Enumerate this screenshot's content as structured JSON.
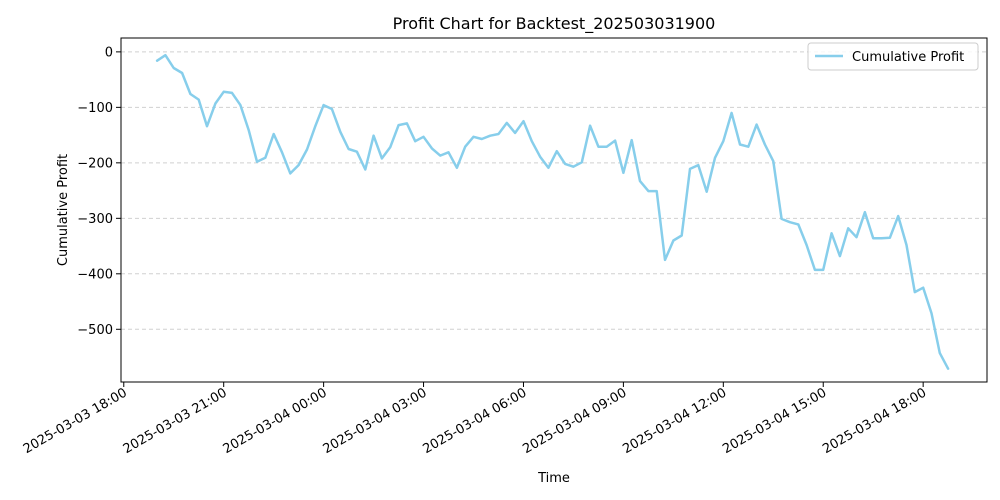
{
  "chart_data": {
    "type": "line",
    "title": "Profit Chart for Backtest_202503031900",
    "xlabel": "Time",
    "ylabel": "Cumulative Profit",
    "legend": {
      "placement": "top-right",
      "entries": [
        "Cumulative Profit"
      ]
    },
    "grid": {
      "x": false,
      "y": true,
      "style": "dashed"
    },
    "colors": {
      "line": "#87CEEB",
      "grid": "#d0d0d0",
      "axis": "#000000"
    },
    "xlim": [
      "2025-03-03 17:55",
      "2025-03-04 19:55"
    ],
    "ylim": [
      -595,
      25
    ],
    "x_ticks": [
      {
        "value": "2025-03-03 18:00",
        "label": "2025-03-03 18:00"
      },
      {
        "value": "2025-03-03 21:00",
        "label": "2025-03-03 21:00"
      },
      {
        "value": "2025-03-04 00:00",
        "label": "2025-03-04 00:00"
      },
      {
        "value": "2025-03-04 03:00",
        "label": "2025-03-04 03:00"
      },
      {
        "value": "2025-03-04 06:00",
        "label": "2025-03-04 06:00"
      },
      {
        "value": "2025-03-04 09:00",
        "label": "2025-03-04 09:00"
      },
      {
        "value": "2025-03-04 12:00",
        "label": "2025-03-04 12:00"
      },
      {
        "value": "2025-03-04 15:00",
        "label": "2025-03-04 15:00"
      },
      {
        "value": "2025-03-04 18:00",
        "label": "2025-03-04 18:00"
      }
    ],
    "y_ticks": [
      {
        "value": 0,
        "label": "0"
      },
      {
        "value": -100,
        "label": "−100"
      },
      {
        "value": -200,
        "label": "−200"
      },
      {
        "value": -300,
        "label": "−300"
      },
      {
        "value": -400,
        "label": "−400"
      },
      {
        "value": -500,
        "label": "−500"
      }
    ],
    "series": [
      {
        "name": "Cumulative Profit",
        "x": [
          "2025-03-03 19:00",
          "2025-03-03 19:15",
          "2025-03-03 19:30",
          "2025-03-03 19:45",
          "2025-03-03 20:00",
          "2025-03-03 20:15",
          "2025-03-03 20:30",
          "2025-03-03 20:45",
          "2025-03-03 21:00",
          "2025-03-03 21:15",
          "2025-03-03 21:30",
          "2025-03-03 21:45",
          "2025-03-03 22:00",
          "2025-03-03 22:15",
          "2025-03-03 22:30",
          "2025-03-03 22:45",
          "2025-03-03 23:00",
          "2025-03-03 23:15",
          "2025-03-03 23:30",
          "2025-03-03 23:45",
          "2025-03-04 00:00",
          "2025-03-04 00:15",
          "2025-03-04 00:30",
          "2025-03-04 00:45",
          "2025-03-04 01:00",
          "2025-03-04 01:15",
          "2025-03-04 01:30",
          "2025-03-04 01:45",
          "2025-03-04 02:00",
          "2025-03-04 02:15",
          "2025-03-04 02:30",
          "2025-03-04 02:45",
          "2025-03-04 03:00",
          "2025-03-04 03:15",
          "2025-03-04 03:30",
          "2025-03-04 03:45",
          "2025-03-04 04:00",
          "2025-03-04 04:15",
          "2025-03-04 04:30",
          "2025-03-04 04:45",
          "2025-03-04 05:00",
          "2025-03-04 05:15",
          "2025-03-04 05:30",
          "2025-03-04 05:45",
          "2025-03-04 06:00",
          "2025-03-04 06:15",
          "2025-03-04 06:30",
          "2025-03-04 06:45",
          "2025-03-04 07:00",
          "2025-03-04 07:15",
          "2025-03-04 07:30",
          "2025-03-04 07:45",
          "2025-03-04 08:00",
          "2025-03-04 08:15",
          "2025-03-04 08:30",
          "2025-03-04 08:45",
          "2025-03-04 09:00",
          "2025-03-04 09:15",
          "2025-03-04 09:30",
          "2025-03-04 09:45",
          "2025-03-04 10:00",
          "2025-03-04 10:15",
          "2025-03-04 10:30",
          "2025-03-04 10:45",
          "2025-03-04 11:00",
          "2025-03-04 11:15",
          "2025-03-04 11:30",
          "2025-03-04 11:45",
          "2025-03-04 12:00",
          "2025-03-04 12:15",
          "2025-03-04 12:30",
          "2025-03-04 12:45",
          "2025-03-04 13:00",
          "2025-03-04 13:15",
          "2025-03-04 13:30",
          "2025-03-04 13:45",
          "2025-03-04 14:00",
          "2025-03-04 14:15",
          "2025-03-04 14:30",
          "2025-03-04 14:45",
          "2025-03-04 15:00",
          "2025-03-04 15:15",
          "2025-03-04 15:30",
          "2025-03-04 15:45",
          "2025-03-04 16:00",
          "2025-03-04 16:15",
          "2025-03-04 16:30",
          "2025-03-04 16:45",
          "2025-03-04 17:00",
          "2025-03-04 17:15",
          "2025-03-04 17:30",
          "2025-03-04 17:45",
          "2025-03-04 18:00",
          "2025-03-04 18:15",
          "2025-03-04 18:30",
          "2025-03-04 18:45"
        ],
        "y": [
          -16,
          -6,
          -29,
          -38,
          -76,
          -86,
          -134,
          -93,
          -72,
          -74,
          -96,
          -141,
          -198,
          -191,
          -148,
          -181,
          -219,
          -204,
          -176,
          -134,
          -96,
          -103,
          -144,
          -175,
          -180,
          -212,
          -151,
          -192,
          -172,
          -132,
          -129,
          -161,
          -153,
          -174,
          -187,
          -181,
          -209,
          -171,
          -153,
          -157,
          -151,
          -148,
          -128,
          -146,
          -125,
          -161,
          -189,
          -209,
          -179,
          -202,
          -207,
          -199,
          -133,
          -171,
          -171,
          -160,
          -218,
          -159,
          -233,
          -251,
          -251,
          -375,
          -340,
          -331,
          -211,
          -204,
          -252,
          -191,
          -161,
          -110,
          -167,
          -171,
          -131,
          -167,
          -197,
          -301,
          -307,
          -311,
          -348,
          -393,
          -393,
          -327,
          -368,
          -318,
          -334,
          -289,
          -336,
          -336,
          -335,
          -296,
          -348,
          -433,
          -425,
          -471,
          -543,
          -571
        ]
      }
    ]
  }
}
